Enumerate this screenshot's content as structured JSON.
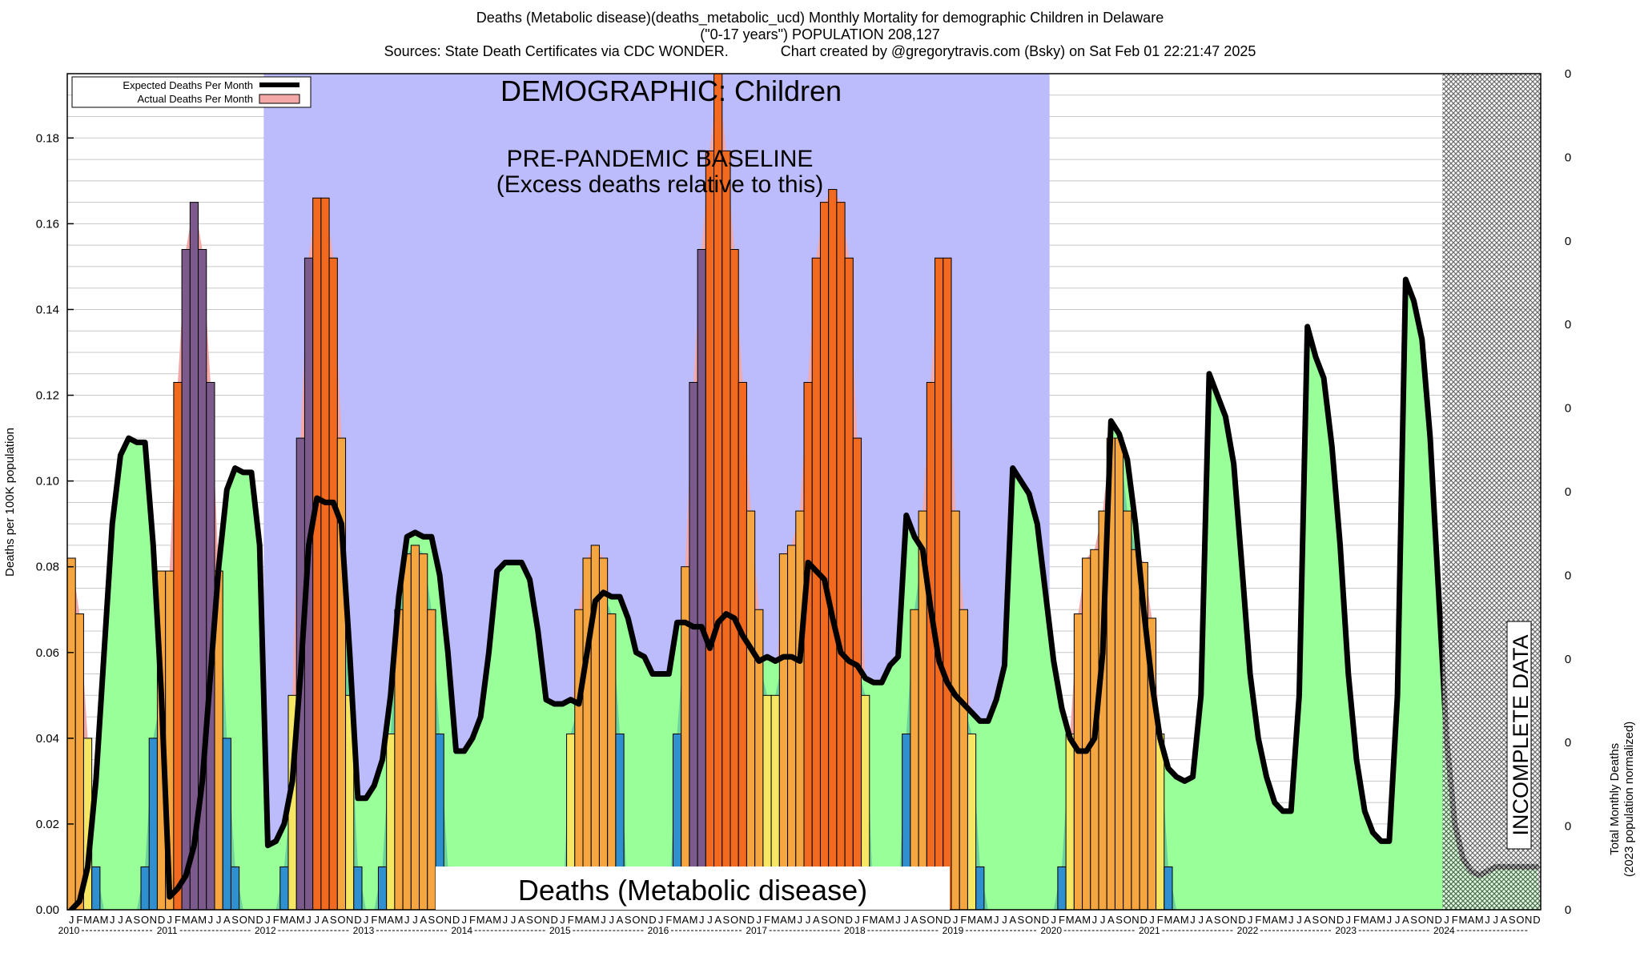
{
  "title": {
    "line1": "Deaths (Metabolic disease)(deaths_metabolic_ucd) Monthly Mortality for demographic Children in Delaware",
    "line2": "(\"0-17 years\") POPULATION 208,127",
    "line3": "Sources: State Death Certificates via CDC WONDER.             Chart created by @gregorytravis.com (Bsky) on Sat Feb 01 22:21:47 2025"
  },
  "overlay": {
    "demographic": "DEMOGRAPHIC: Children",
    "baseline_line1": "PRE-PANDEMIC BASELINE",
    "baseline_line2": "(Excess deaths relative to this)",
    "cause_label": "Deaths (Metabolic disease)",
    "incomplete": "INCOMPLETE DATA"
  },
  "colors": {
    "baseline_region": "#bcbcfc",
    "expected_fill": "#99ff99",
    "overlap_fill": "#6cd49c",
    "actual_fill": "#f4a8a8",
    "expected_line": "#000000",
    "bar_low": "#1e9e8a",
    "bar_mid_low": "#f5e663",
    "bar_mid_high": "#f5a640",
    "bar_high": "#f26a1f",
    "bar_blue": "#2f8fcf",
    "bar_purple": "#7d5a8c",
    "hatch": "#333333"
  },
  "chart_data": {
    "type": "bar+line",
    "ylabel": "Deaths per 100K population",
    "ylabel_right_line1": "Total Monthly Deaths",
    "ylabel_right_line2": "(2023 population normalized)",
    "ylim": [
      0,
      0.195
    ],
    "y_ticks": [
      "0.00",
      "0.02",
      "0.04",
      "0.06",
      "0.08",
      "0.10",
      "0.12",
      "0.14",
      "0.16",
      "0.18"
    ],
    "y_tick_values": [
      0,
      0.02,
      0.04,
      0.06,
      0.08,
      0.1,
      0.12,
      0.14,
      0.16,
      0.18
    ],
    "right_ticks": [
      "0",
      "0",
      "0",
      "0",
      "0",
      "0",
      "0",
      "0",
      "0",
      "0",
      "0"
    ],
    "grid": true,
    "legend_position": "top-left",
    "legend": [
      {
        "label": "Expected Deaths Per Month"
      },
      {
        "label": "Actual Deaths Per Month"
      }
    ],
    "month_letters": [
      "J",
      "F",
      "M",
      "A",
      "M",
      "J",
      "J",
      "A",
      "S",
      "O",
      "N",
      "D"
    ],
    "years": [
      "2010",
      "2011",
      "2012",
      "2013",
      "2014",
      "2015",
      "2016",
      "2017",
      "2018",
      "2019",
      "2020",
      "2021",
      "2022",
      "2023",
      "2024"
    ],
    "baseline_period": {
      "start": "2012-01",
      "end": "2019-12"
    },
    "incomplete_period": {
      "start": "2024-01",
      "end": "2024-12"
    },
    "actual": [
      0.082,
      0.069,
      0.04,
      0.01,
      0,
      0,
      0,
      0,
      0,
      0.01,
      0.04,
      0.079,
      0.079,
      0.123,
      0.154,
      0.165,
      0.154,
      0.123,
      0.079,
      0.04,
      0.01,
      0,
      0,
      0,
      0,
      0,
      0.01,
      0.05,
      0.11,
      0.152,
      0.166,
      0.166,
      0.152,
      0.11,
      0.05,
      0.01,
      0,
      0,
      0.01,
      0.041,
      0.07,
      0.083,
      0.085,
      0.083,
      0.07,
      0.041,
      0.01,
      0,
      0,
      0,
      0,
      0,
      0,
      0,
      0,
      0,
      0,
      0,
      0,
      0,
      0,
      0.041,
      0.07,
      0.082,
      0.085,
      0.082,
      0.069,
      0.041,
      0,
      0,
      0,
      0,
      0,
      0,
      0.041,
      0.08,
      0.123,
      0.154,
      0.177,
      0.195,
      0.177,
      0.154,
      0.123,
      0.093,
      0.07,
      0.05,
      0.05,
      0.083,
      0.085,
      0.093,
      0.123,
      0.152,
      0.165,
      0.168,
      0.165,
      0.152,
      0.11,
      0.05,
      0,
      0,
      0,
      0,
      0.041,
      0.07,
      0.093,
      0.123,
      0.152,
      0.152,
      0.093,
      0.07,
      0.041,
      0.01,
      0,
      0,
      0,
      0,
      0,
      0,
      0,
      0,
      0,
      0.01,
      0.041,
      0.069,
      0.082,
      0.084,
      0.093,
      0.11,
      0.11,
      0.093,
      0.084,
      0.081,
      0.068,
      0.041,
      0.01,
      0,
      0,
      0,
      0,
      0,
      0,
      0,
      0,
      0,
      0,
      0,
      0,
      0,
      0,
      0,
      0,
      0,
      0,
      0,
      0,
      0,
      0,
      0,
      0,
      0,
      0,
      0,
      0,
      0,
      0,
      0,
      0,
      0,
      0,
      0,
      0,
      0,
      0,
      0,
      0,
      0,
      0,
      0,
      0,
      0
    ],
    "expected": [
      0.0,
      0.002,
      0.01,
      0.03,
      0.06,
      0.09,
      0.106,
      0.11,
      0.109,
      0.109,
      0.085,
      0.05,
      0.003,
      0.005,
      0.008,
      0.015,
      0.03,
      0.055,
      0.08,
      0.098,
      0.103,
      0.102,
      0.102,
      0.085,
      0.015,
      0.016,
      0.02,
      0.03,
      0.055,
      0.085,
      0.096,
      0.095,
      0.095,
      0.09,
      0.06,
      0.026,
      0.026,
      0.029,
      0.035,
      0.05,
      0.073,
      0.087,
      0.088,
      0.087,
      0.087,
      0.078,
      0.06,
      0.037,
      0.037,
      0.04,
      0.045,
      0.06,
      0.079,
      0.081,
      0.081,
      0.081,
      0.077,
      0.065,
      0.049,
      0.048,
      0.048,
      0.049,
      0.048,
      0.06,
      0.072,
      0.074,
      0.073,
      0.073,
      0.068,
      0.06,
      0.059,
      0.055,
      0.055,
      0.055,
      0.067,
      0.067,
      0.066,
      0.066,
      0.061,
      0.067,
      0.069,
      0.068,
      0.064,
      0.061,
      0.058,
      0.059,
      0.058,
      0.059,
      0.059,
      0.058,
      0.081,
      0.079,
      0.077,
      0.068,
      0.06,
      0.058,
      0.057,
      0.054,
      0.053,
      0.053,
      0.057,
      0.059,
      0.092,
      0.087,
      0.084,
      0.07,
      0.058,
      0.053,
      0.05,
      0.048,
      0.046,
      0.044,
      0.044,
      0.049,
      0.057,
      0.103,
      0.1,
      0.097,
      0.09,
      0.074,
      0.058,
      0.047,
      0.04,
      0.037,
      0.037,
      0.04,
      0.06,
      0.114,
      0.111,
      0.105,
      0.09,
      0.07,
      0.053,
      0.04,
      0.033,
      0.031,
      0.03,
      0.031,
      0.05,
      0.125,
      0.12,
      0.115,
      0.104,
      0.08,
      0.055,
      0.04,
      0.031,
      0.025,
      0.023,
      0.023,
      0.05,
      0.136,
      0.129,
      0.124,
      0.108,
      0.085,
      0.055,
      0.035,
      0.023,
      0.018,
      0.016,
      0.016,
      0.05,
      0.147,
      0.142,
      0.133,
      0.11,
      0.075,
      0.04,
      0.02,
      0.012,
      0.009,
      0.008,
      0.009,
      0.01,
      0.01,
      0.01,
      0.01,
      0.01,
      0.01
    ]
  }
}
